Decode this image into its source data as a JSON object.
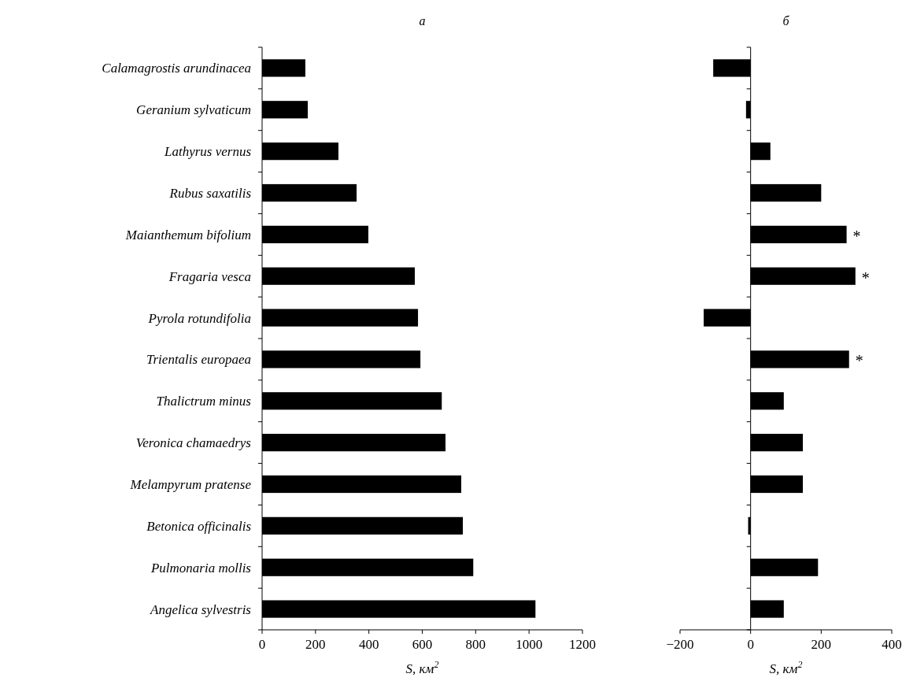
{
  "chart_data": [
    {
      "type": "bar",
      "orientation": "horizontal",
      "title": "a",
      "categories": [
        "Calamagrostis arundinacea",
        "Geranium sylvaticum",
        "Lathyrus vernus",
        "Rubus saxatilis",
        "Maianthemum bifolium",
        "Fragaria vesca",
        "Pyrola rotundifolia",
        "Trientalis europaea",
        "Thalictrum minus",
        "Veronica chamaedrys",
        "Melampyrum pratense",
        "Betonica officinalis",
        "Pulmonaria mollis",
        "Angelica sylvestris"
      ],
      "values": [
        162,
        171,
        286,
        354,
        398,
        572,
        584,
        593,
        673,
        687,
        746,
        752,
        791,
        1024
      ],
      "color": "#000000",
      "xlim": [
        0,
        1200
      ],
      "xticks": [
        0,
        200,
        400,
        600,
        800,
        1000,
        1200
      ],
      "xlabel": "S, км$^{2}$"
    },
    {
      "type": "bar",
      "orientation": "horizontal",
      "title": "б",
      "categories": [
        "Calamagrostis arundinacea",
        "Geranium sylvaticum",
        "Lathyrus vernus",
        "Rubus saxatilis",
        "Maianthemum bifolium",
        "Fragaria vesca",
        "Pyrola rotundifolia",
        "Trientalis europaea",
        "Thalictrum minus",
        "Veronica chamaedrys",
        "Melampyrum pratense",
        "Betonica officinalis",
        "Pulmonaria mollis",
        "Angelica sylvestris"
      ],
      "values": [
        -106,
        -13,
        56,
        200,
        272,
        297,
        -133,
        279,
        94,
        148,
        148,
        -7,
        191,
        94
      ],
      "color": "#000000",
      "xlim": [
        -200,
        400
      ],
      "xticks": [
        {
          "value": -200,
          "label": "−200"
        },
        0,
        200,
        400
      ],
      "xlabel": "S, км$^{2}$",
      "tick_labels": "x",
      "annotations": [
        {
          "text": "*",
          "x": 272,
          "y": "Maianthemum bifolium"
        },
        {
          "text": "*",
          "x": 297,
          "y": "Fragaria vesca"
        },
        {
          "text": "*",
          "x": 279,
          "y": "Trientalis europaea"
        }
      ]
    }
  ]
}
